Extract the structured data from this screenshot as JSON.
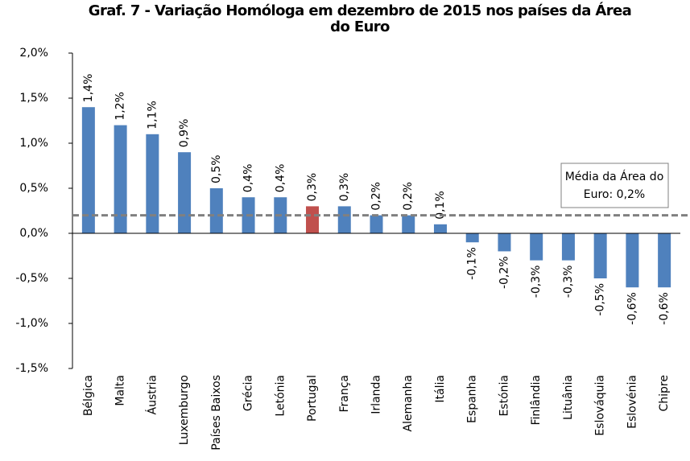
{
  "chart_data": {
    "type": "bar",
    "title": "Graf. 7 - Variação Homóloga em dezembro de 2015 nos países da Área do Euro",
    "categories": [
      "Bélgica",
      "Malta",
      "Áustria",
      "Luxemburgo",
      "Países Baixos",
      "Grécia",
      "Letónia",
      "Portugal",
      "França",
      "Irlanda",
      "Alemanha",
      "Itália",
      "Espanha",
      "Estónia",
      "Finlândia",
      "Lituânia",
      "Eslováquia",
      "Eslovénia",
      "Chipre"
    ],
    "values": [
      1.4,
      1.2,
      1.1,
      0.9,
      0.5,
      0.4,
      0.4,
      0.3,
      0.3,
      0.2,
      0.2,
      0.1,
      -0.1,
      -0.2,
      -0.3,
      -0.3,
      -0.5,
      -0.6,
      -0.6
    ],
    "value_labels": [
      "1,4%",
      "1,2%",
      "1,1%",
      "0,9%",
      "0,5%",
      "0,4%",
      "0,4%",
      "0,3%",
      "0,3%",
      "0,2%",
      "0,2%",
      "0,1%",
      "-0,1%",
      "-0,2%",
      "-0,3%",
      "-0,3%",
      "-0,5%",
      "-0,6%",
      "-0,6%"
    ],
    "colors": [
      "#4f81bd",
      "#4f81bd",
      "#4f81bd",
      "#4f81bd",
      "#4f81bd",
      "#4f81bd",
      "#4f81bd",
      "#c0504d",
      "#4f81bd",
      "#4f81bd",
      "#4f81bd",
      "#4f81bd",
      "#4f81bd",
      "#4f81bd",
      "#4f81bd",
      "#4f81bd",
      "#4f81bd",
      "#4f81bd",
      "#4f81bd"
    ],
    "ylim": [
      -1.5,
      2.0
    ],
    "yticks": [
      {
        "value": -1.5,
        "label": "-1,5%"
      },
      {
        "value": -1.0,
        "label": "-1,0%"
      },
      {
        "value": -0.5,
        "label": "-0,5%"
      },
      {
        "value": 0,
        "label": "0,0%"
      },
      {
        "value": 0.5,
        "label": "0,5%"
      },
      {
        "value": 1.0,
        "label": "1,0%"
      },
      {
        "value": 1.5,
        "label": "1,5%"
      },
      {
        "value": 2.0,
        "label": "2,0%"
      }
    ],
    "reference_line": {
      "value": 0.2,
      "color": "#808080",
      "label_lines": [
        "Média da Área do",
        "Euro: 0,2%"
      ]
    }
  }
}
